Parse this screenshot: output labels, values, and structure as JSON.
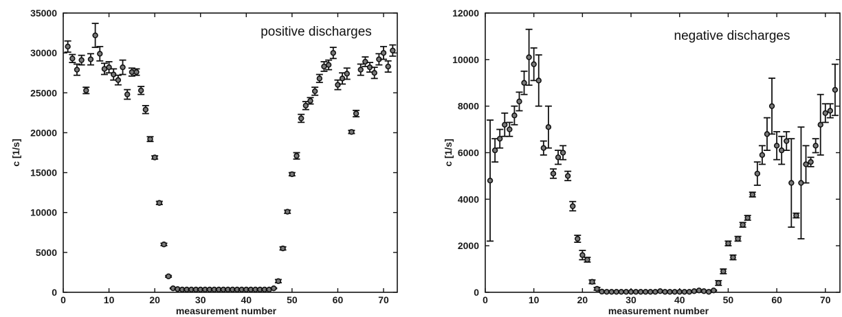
{
  "chart_data": [
    {
      "type": "scatter",
      "annotation": "positive discharges",
      "xlabel": "measurement number",
      "ylabel": "c [1/s]",
      "xlim": [
        0,
        73
      ],
      "ylim": [
        0,
        35000
      ],
      "xticks": [
        0,
        10,
        20,
        30,
        40,
        50,
        60,
        70
      ],
      "yticks": [
        0,
        5000,
        10000,
        15000,
        20000,
        25000,
        30000,
        35000
      ],
      "x": [
        1,
        2,
        3,
        4,
        5,
        6,
        7,
        8,
        9,
        10,
        11,
        12,
        13,
        14,
        15,
        16,
        17,
        18,
        19,
        20,
        21,
        22,
        23,
        24,
        25,
        26,
        27,
        28,
        29,
        30,
        31,
        32,
        33,
        34,
        35,
        36,
        37,
        38,
        39,
        40,
        41,
        42,
        43,
        44,
        45,
        46,
        47,
        48,
        49,
        50,
        51,
        52,
        53,
        54,
        55,
        56,
        57,
        58,
        59,
        60,
        61,
        62,
        63,
        64,
        65,
        66,
        67,
        68,
        69,
        70,
        71,
        72
      ],
      "y": [
        30800,
        29300,
        27900,
        29100,
        25300,
        29200,
        32200,
        29900,
        28000,
        28200,
        27300,
        26600,
        28200,
        24800,
        27600,
        27600,
        25300,
        22900,
        19200,
        16900,
        11200,
        6000,
        2000,
        500,
        400,
        350,
        350,
        350,
        350,
        350,
        350,
        350,
        350,
        350,
        350,
        350,
        350,
        350,
        350,
        350,
        350,
        350,
        350,
        350,
        350,
        500,
        1400,
        5500,
        10100,
        14800,
        17100,
        21800,
        23400,
        24000,
        25200,
        26800,
        28300,
        28500,
        30000,
        26000,
        26800,
        27400,
        20100,
        22400,
        27900,
        28900,
        28200,
        27500,
        29200,
        30000,
        28300,
        30300
      ],
      "yerr": [
        700,
        500,
        700,
        600,
        400,
        700,
        1500,
        900,
        700,
        700,
        700,
        600,
        900,
        600,
        500,
        400,
        500,
        500,
        300,
        200,
        200,
        150,
        100,
        50,
        50,
        50,
        50,
        50,
        50,
        50,
        50,
        50,
        50,
        50,
        50,
        50,
        50,
        50,
        50,
        50,
        50,
        50,
        50,
        50,
        50,
        50,
        200,
        200,
        200,
        200,
        400,
        500,
        500,
        400,
        500,
        500,
        600,
        600,
        700,
        600,
        700,
        700,
        200,
        400,
        700,
        600,
        600,
        700,
        700,
        800,
        700,
        700
      ]
    },
    {
      "type": "scatter",
      "annotation": "negative discharges",
      "xlabel": "measurement number",
      "ylabel": "c [1/s]",
      "xlim": [
        0,
        73
      ],
      "ylim": [
        0,
        12000
      ],
      "xticks": [
        0,
        10,
        20,
        30,
        40,
        50,
        60,
        70
      ],
      "yticks": [
        0,
        2000,
        4000,
        6000,
        8000,
        10000,
        12000
      ],
      "x": [
        1,
        2,
        3,
        4,
        5,
        6,
        7,
        8,
        9,
        10,
        11,
        12,
        13,
        14,
        15,
        16,
        17,
        18,
        19,
        20,
        21,
        22,
        23,
        24,
        25,
        26,
        27,
        28,
        29,
        30,
        31,
        32,
        33,
        34,
        35,
        36,
        37,
        38,
        39,
        40,
        41,
        42,
        43,
        44,
        45,
        46,
        47,
        48,
        49,
        50,
        51,
        52,
        53,
        54,
        55,
        56,
        57,
        58,
        59,
        60,
        61,
        62,
        63,
        64,
        65,
        66,
        67,
        68,
        69,
        70,
        71,
        72
      ],
      "y": [
        4800,
        6100,
        6600,
        7200,
        7000,
        7600,
        8200,
        9000,
        10100,
        9800,
        9100,
        6200,
        7100,
        5100,
        5800,
        6000,
        5000,
        3700,
        2300,
        1600,
        1400,
        450,
        150,
        30,
        20,
        20,
        20,
        20,
        20,
        20,
        20,
        20,
        20,
        20,
        20,
        50,
        20,
        20,
        20,
        20,
        20,
        20,
        50,
        80,
        50,
        20,
        80,
        400,
        900,
        2100,
        1500,
        2300,
        2900,
        3200,
        4200,
        5100,
        5900,
        6800,
        8000,
        6300,
        6100,
        6500,
        4700,
        3300,
        4700,
        5500,
        5600,
        6300,
        7200,
        7700,
        7800,
        8700
      ],
      "yerr": [
        2600,
        500,
        400,
        500,
        300,
        400,
        400,
        500,
        1200,
        700,
        1100,
        300,
        900,
        200,
        300,
        300,
        200,
        200,
        150,
        200,
        100,
        80,
        60,
        20,
        20,
        20,
        20,
        20,
        20,
        20,
        20,
        20,
        20,
        20,
        20,
        20,
        20,
        20,
        20,
        20,
        20,
        20,
        20,
        20,
        20,
        20,
        20,
        100,
        100,
        100,
        100,
        100,
        100,
        100,
        100,
        500,
        400,
        700,
        1200,
        600,
        600,
        400,
        1900,
        100,
        2400,
        800,
        200,
        300,
        1300,
        400,
        300,
        1100
      ]
    }
  ]
}
